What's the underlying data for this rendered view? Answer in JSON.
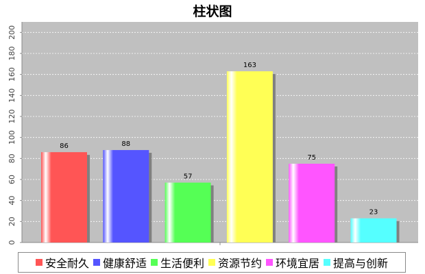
{
  "chart_data": {
    "type": "bar",
    "title": "柱状图",
    "xlabel": "",
    "ylabel": "",
    "categories": [
      "安全耐久",
      "健康舒适",
      "生活便利",
      "资源节约",
      "环境宜居",
      "提高与创新"
    ],
    "values": [
      86,
      88,
      57,
      163,
      75,
      23
    ],
    "colors": [
      "#ff5555",
      "#5555ff",
      "#55ff55",
      "#ffff55",
      "#ff55ff",
      "#55ffff"
    ],
    "ylim": [
      0,
      210
    ],
    "yticks": [
      0,
      20,
      40,
      60,
      80,
      100,
      120,
      140,
      160,
      180,
      200
    ],
    "grid": true,
    "plot_background": "#c0c0c0",
    "legend_position": "bottom"
  }
}
